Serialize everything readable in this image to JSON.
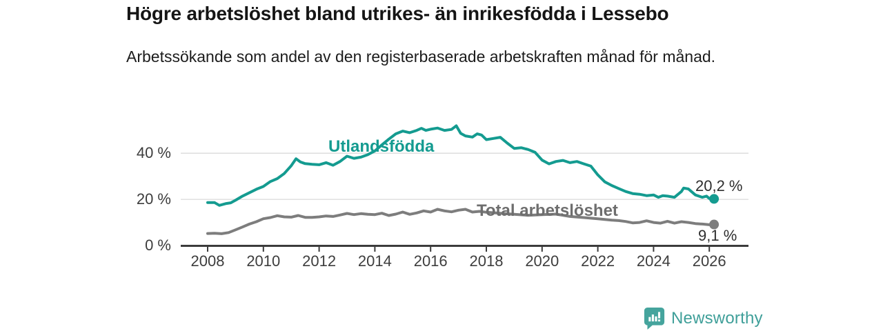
{
  "chart_data": {
    "type": "line",
    "title": "Högre arbetslöshet bland utrikes- än inrikesfödda i Lessebo",
    "subtitle": "Arbetssökande som andel av den registerbaserade arbetskraften månad för månad.",
    "unit": "%",
    "xlim": [
      2007.9,
      2027.4
    ],
    "ylim": [
      0,
      55
    ],
    "grid": "horizontal",
    "legend_position": "inline-labels-on-lines",
    "x_ticks": [
      2008,
      2010,
      2012,
      2014,
      2016,
      2018,
      2020,
      2022,
      2024,
      2026
    ],
    "y_ticks": [
      {
        "value": 40,
        "label": "40 %"
      },
      {
        "value": 20,
        "label": "20 %"
      },
      {
        "value": 0,
        "label": "0 %"
      }
    ],
    "series": [
      {
        "name": "Utlandsfödda",
        "color": "#149b90",
        "end_label": "20,2 %",
        "end_value": 20.2,
        "points": [
          [
            2008.0,
            18.6
          ],
          [
            2008.25,
            18.6
          ],
          [
            2008.42,
            17.4
          ],
          [
            2008.67,
            18.2
          ],
          [
            2008.83,
            18.5
          ],
          [
            2009.0,
            19.6
          ],
          [
            2009.25,
            21.4
          ],
          [
            2009.5,
            22.9
          ],
          [
            2009.75,
            24.4
          ],
          [
            2010.0,
            25.6
          ],
          [
            2010.25,
            27.7
          ],
          [
            2010.5,
            29.0
          ],
          [
            2010.75,
            31.2
          ],
          [
            2011.0,
            34.6
          ],
          [
            2011.17,
            37.6
          ],
          [
            2011.33,
            36.2
          ],
          [
            2011.5,
            35.5
          ],
          [
            2011.75,
            35.2
          ],
          [
            2012.0,
            35.0
          ],
          [
            2012.25,
            35.9
          ],
          [
            2012.5,
            34.8
          ],
          [
            2012.75,
            36.4
          ],
          [
            2013.0,
            38.7
          ],
          [
            2013.25,
            37.8
          ],
          [
            2013.5,
            38.3
          ],
          [
            2013.75,
            39.4
          ],
          [
            2014.0,
            41.0
          ],
          [
            2014.25,
            43.6
          ],
          [
            2014.5,
            46.1
          ],
          [
            2014.75,
            48.4
          ],
          [
            2015.0,
            49.6
          ],
          [
            2015.25,
            48.9
          ],
          [
            2015.5,
            49.9
          ],
          [
            2015.67,
            50.8
          ],
          [
            2015.83,
            49.9
          ],
          [
            2016.0,
            50.4
          ],
          [
            2016.25,
            50.9
          ],
          [
            2016.5,
            49.9
          ],
          [
            2016.75,
            50.3
          ],
          [
            2016.92,
            51.9
          ],
          [
            2017.08,
            48.6
          ],
          [
            2017.25,
            47.5
          ],
          [
            2017.5,
            47.0
          ],
          [
            2017.67,
            48.4
          ],
          [
            2017.83,
            47.9
          ],
          [
            2018.0,
            45.9
          ],
          [
            2018.25,
            46.4
          ],
          [
            2018.5,
            46.9
          ],
          [
            2018.75,
            44.4
          ],
          [
            2019.0,
            42.1
          ],
          [
            2019.25,
            42.4
          ],
          [
            2019.5,
            41.6
          ],
          [
            2019.75,
            40.4
          ],
          [
            2020.0,
            37.0
          ],
          [
            2020.25,
            35.4
          ],
          [
            2020.5,
            36.4
          ],
          [
            2020.75,
            36.9
          ],
          [
            2021.0,
            35.9
          ],
          [
            2021.25,
            36.4
          ],
          [
            2021.5,
            35.4
          ],
          [
            2021.75,
            34.4
          ],
          [
            2022.0,
            30.6
          ],
          [
            2022.25,
            27.6
          ],
          [
            2022.5,
            26.0
          ],
          [
            2022.75,
            24.7
          ],
          [
            2023.0,
            23.4
          ],
          [
            2023.25,
            22.5
          ],
          [
            2023.5,
            22.2
          ],
          [
            2023.75,
            21.6
          ],
          [
            2024.0,
            21.9
          ],
          [
            2024.17,
            20.9
          ],
          [
            2024.33,
            21.6
          ],
          [
            2024.5,
            21.4
          ],
          [
            2024.75,
            20.9
          ],
          [
            2025.0,
            23.4
          ],
          [
            2025.08,
            24.9
          ],
          [
            2025.25,
            24.5
          ],
          [
            2025.5,
            21.9
          ],
          [
            2025.75,
            20.9
          ],
          [
            2025.9,
            21.4
          ],
          [
            2026.0,
            20.4
          ],
          [
            2026.17,
            20.2
          ]
        ]
      },
      {
        "name": "Total arbetslöshet",
        "color": "#7d7d7d",
        "end_label": "9,1 %",
        "end_value": 9.1,
        "points": [
          [
            2008.0,
            5.2
          ],
          [
            2008.25,
            5.3
          ],
          [
            2008.5,
            5.1
          ],
          [
            2008.75,
            5.6
          ],
          [
            2009.0,
            6.8
          ],
          [
            2009.25,
            8.0
          ],
          [
            2009.5,
            9.3
          ],
          [
            2009.75,
            10.3
          ],
          [
            2010.0,
            11.6
          ],
          [
            2010.25,
            12.1
          ],
          [
            2010.5,
            12.9
          ],
          [
            2010.75,
            12.4
          ],
          [
            2011.0,
            12.3
          ],
          [
            2011.25,
            13.0
          ],
          [
            2011.5,
            12.2
          ],
          [
            2011.75,
            12.2
          ],
          [
            2012.0,
            12.4
          ],
          [
            2012.25,
            12.8
          ],
          [
            2012.5,
            12.6
          ],
          [
            2012.75,
            13.2
          ],
          [
            2013.0,
            13.9
          ],
          [
            2013.25,
            13.4
          ],
          [
            2013.5,
            13.8
          ],
          [
            2013.75,
            13.5
          ],
          [
            2014.0,
            13.4
          ],
          [
            2014.25,
            14.0
          ],
          [
            2014.5,
            13.0
          ],
          [
            2014.75,
            13.6
          ],
          [
            2015.0,
            14.5
          ],
          [
            2015.25,
            13.5
          ],
          [
            2015.5,
            14.1
          ],
          [
            2015.75,
            15.0
          ],
          [
            2016.0,
            14.5
          ],
          [
            2016.25,
            15.7
          ],
          [
            2016.5,
            15.0
          ],
          [
            2016.75,
            14.6
          ],
          [
            2017.0,
            15.3
          ],
          [
            2017.25,
            15.7
          ],
          [
            2017.5,
            14.5
          ],
          [
            2017.75,
            14.8
          ],
          [
            2018.0,
            14.4
          ],
          [
            2018.5,
            14.0
          ],
          [
            2019.0,
            13.5
          ],
          [
            2019.5,
            13.1
          ],
          [
            2020.0,
            13.4
          ],
          [
            2020.5,
            13.6
          ],
          [
            2021.0,
            12.6
          ],
          [
            2021.5,
            12.1
          ],
          [
            2022.0,
            11.6
          ],
          [
            2022.25,
            11.3
          ],
          [
            2022.5,
            11.0
          ],
          [
            2022.75,
            10.8
          ],
          [
            2023.0,
            10.4
          ],
          [
            2023.25,
            9.8
          ],
          [
            2023.5,
            10.0
          ],
          [
            2023.75,
            10.7
          ],
          [
            2024.0,
            10.0
          ],
          [
            2024.25,
            9.7
          ],
          [
            2024.5,
            10.5
          ],
          [
            2024.75,
            9.7
          ],
          [
            2025.0,
            10.3
          ],
          [
            2025.25,
            10.0
          ],
          [
            2025.5,
            9.5
          ],
          [
            2025.75,
            9.3
          ],
          [
            2026.0,
            9.0
          ],
          [
            2026.17,
            9.1
          ]
        ]
      }
    ]
  },
  "branding": {
    "logo_text": "Newsworthy",
    "logo_icon": "bar-chart-speech-bubble-icon",
    "logo_color": "#45a49d"
  }
}
